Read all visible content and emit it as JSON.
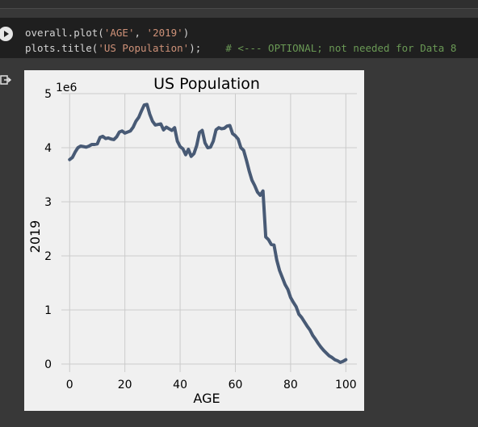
{
  "code_cell": {
    "line1": {
      "prefix": "overall.plot(",
      "arg1": "'AGE'",
      "sep": ", ",
      "arg2": "'2019'",
      "suffix": ")"
    },
    "line2": {
      "prefix": "plots.title(",
      "arg": "'US Population'",
      "suffix": ");",
      "comment": "# <--- OPTIONAL; not needed for Data 8"
    },
    "run_icon": "play-circle-icon",
    "output_icon": "output-arrow-icon"
  },
  "colors": {
    "page_bg": "#383838",
    "cell_bg": "#1f1f1f",
    "code_text": "#d4d4d4",
    "string": "#ce9178",
    "comment": "#6a9955",
    "plot_bg": "#f0f0f0",
    "grid": "#cbcbcb",
    "line": "#485a75"
  },
  "chart_data": {
    "type": "line",
    "title": "US Population",
    "xlabel": "AGE",
    "ylabel": "2019",
    "y_offset_label": "1e6",
    "xlim": [
      -3,
      104
    ],
    "ylim": [
      -0.15,
      5
    ],
    "x_ticks": [
      0,
      20,
      40,
      60,
      80,
      100
    ],
    "y_ticks": [
      0,
      1,
      2,
      3,
      4,
      5
    ],
    "grid": true,
    "series": [
      {
        "x": [
          0,
          1,
          2,
          3,
          4,
          5,
          6,
          7,
          8,
          9,
          10,
          11,
          12,
          13,
          14,
          15,
          16,
          17,
          18,
          19,
          20,
          21,
          22,
          23,
          24,
          25,
          26,
          27,
          28,
          29,
          30,
          31,
          32,
          33,
          34,
          35,
          36,
          37,
          38,
          39,
          40,
          41,
          42,
          43,
          44,
          45,
          46,
          47,
          48,
          49,
          50,
          51,
          52,
          53,
          54,
          55,
          56,
          57,
          58,
          59,
          60,
          61,
          62,
          63,
          64,
          65,
          66,
          67,
          68,
          69,
          70,
          71,
          72,
          73,
          74,
          75,
          76,
          77,
          78,
          79,
          80,
          81,
          82,
          83,
          84,
          85,
          86,
          87,
          88,
          89,
          90,
          91,
          92,
          93,
          94,
          95,
          96,
          97,
          98,
          99,
          100
        ],
        "y": [
          3.78,
          3.82,
          3.92,
          4.0,
          4.03,
          4.02,
          4.01,
          4.03,
          4.06,
          4.06,
          4.07,
          4.19,
          4.21,
          4.17,
          4.18,
          4.16,
          4.15,
          4.2,
          4.29,
          4.31,
          4.27,
          4.29,
          4.31,
          4.38,
          4.49,
          4.56,
          4.68,
          4.79,
          4.8,
          4.62,
          4.49,
          4.42,
          4.43,
          4.44,
          4.33,
          4.38,
          4.35,
          4.32,
          4.37,
          4.12,
          4.02,
          3.98,
          3.87,
          3.97,
          3.84,
          3.89,
          4.04,
          4.28,
          4.32,
          4.09,
          4.0,
          4.01,
          4.12,
          4.33,
          4.37,
          4.35,
          4.36,
          4.4,
          4.41,
          4.26,
          4.22,
          4.16,
          4.0,
          3.95,
          3.77,
          3.57,
          3.4,
          3.3,
          3.18,
          3.12,
          3.2,
          2.35,
          2.3,
          2.21,
          2.2,
          1.92,
          1.73,
          1.6,
          1.47,
          1.38,
          1.23,
          1.14,
          1.06,
          0.92,
          0.86,
          0.78,
          0.7,
          0.63,
          0.53,
          0.46,
          0.38,
          0.31,
          0.25,
          0.2,
          0.15,
          0.12,
          0.08,
          0.06,
          0.03,
          0.05,
          0.08
        ]
      }
    ]
  }
}
